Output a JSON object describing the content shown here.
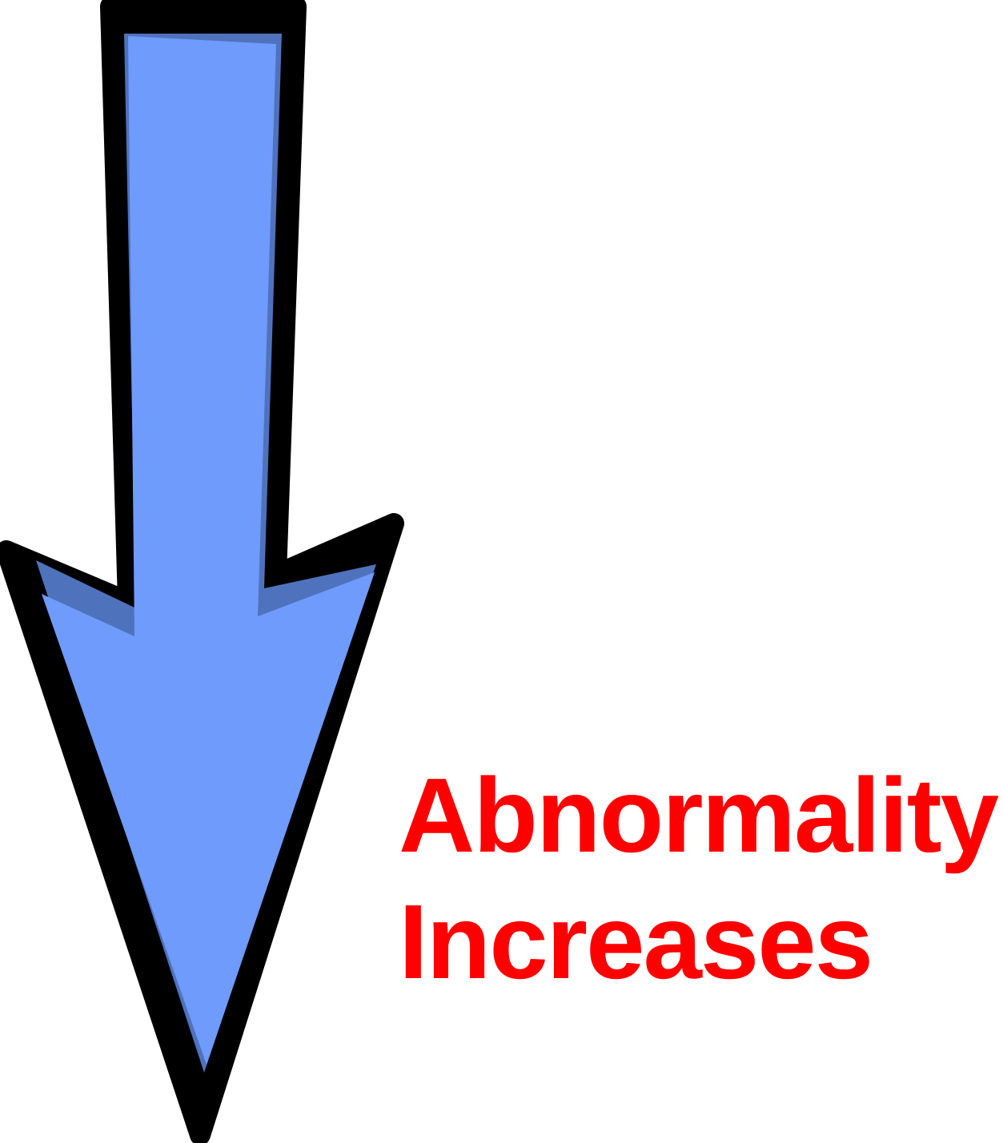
{
  "diagram": {
    "arrow": {
      "icon": "down-arrow-icon",
      "direction": "down",
      "fill_color": "#6f9bfc",
      "shade_color": "#4f72bd",
      "outline_color": "#000000"
    },
    "label": {
      "line1": "Abnormality",
      "line2": "Increases",
      "color": "#ff0000"
    }
  }
}
